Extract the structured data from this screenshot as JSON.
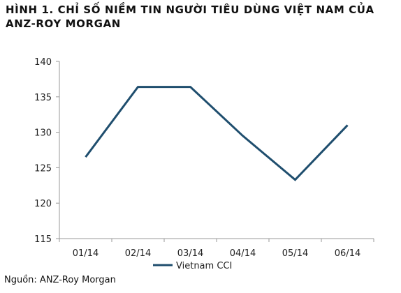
{
  "chart_data": {
    "type": "line",
    "title": "HÌNH 1. CHỈ SỐ NIỀM TIN NGƯỜI TIÊU DÙNG VIỆT NAM CỦA ANZ-ROY MORGAN",
    "categories": [
      "01/14",
      "02/14",
      "03/14",
      "04/14",
      "05/14",
      "06/14"
    ],
    "series": [
      {
        "name": "Vietnam CCI",
        "values": [
          126.5,
          136.4,
          136.4,
          129.5,
          123.3,
          131.0
        ],
        "color": "#1f4e6e"
      }
    ],
    "xlabel": "",
    "ylabel": "",
    "ylim": [
      115,
      140
    ],
    "yticks": [
      115,
      120,
      125,
      130,
      135,
      140
    ],
    "grid": false,
    "legend": "bottom"
  },
  "source": "Nguồn: ANZ-Roy Morgan"
}
